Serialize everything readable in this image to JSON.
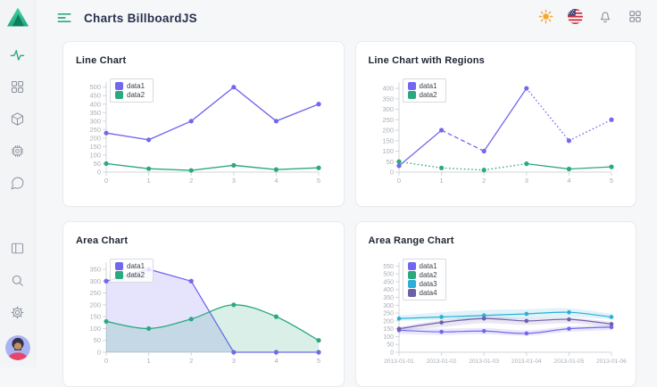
{
  "header": {
    "title": "Charts BillboardJS",
    "actions": [
      {
        "name": "theme-light",
        "icon": "sun-icon"
      },
      {
        "name": "language",
        "icon": "us-flag-icon"
      },
      {
        "name": "notifications",
        "icon": "bell-icon"
      },
      {
        "name": "apps",
        "icon": "apps-grid-icon"
      }
    ]
  },
  "sidebar": {
    "logo_icon": "triangle-logo",
    "top_items": [
      {
        "icon": "activity-icon",
        "active": true
      },
      {
        "icon": "dashboard-grid-icon",
        "active": false
      },
      {
        "icon": "cube-icon",
        "active": false
      },
      {
        "icon": "chip-icon",
        "active": false
      },
      {
        "icon": "chat-bubble-icon",
        "active": false
      }
    ],
    "bottom_items": [
      {
        "icon": "layout-icon"
      },
      {
        "icon": "search-icon"
      },
      {
        "icon": "gear-icon"
      }
    ],
    "avatar": "user-avatar"
  },
  "colors": {
    "primary_purple": "#7267EF",
    "success_green": "#2CA87F",
    "info_blue": "#2BAED8",
    "violet": "#6F5FA7",
    "sun_orange": "#F8A62A",
    "icon_gray": "#8B919C",
    "axis_line": "#d2d5da",
    "tick_text": "#a9adb5",
    "title_navy": "#28324E"
  },
  "chart_data": [
    {
      "type": "line",
      "title": "Line Chart",
      "xlabels": [
        "0",
        "1",
        "2",
        "3",
        "4",
        "5"
      ],
      "ylim": [
        0,
        530
      ],
      "yticks": [
        0,
        50,
        100,
        150,
        200,
        250,
        300,
        350,
        400,
        450,
        500
      ],
      "grid": false,
      "legend_position": "inset-top-left",
      "legend": [
        {
          "label": "data1",
          "color": "#7267EF"
        },
        {
          "label": "data2",
          "color": "#2CA87F"
        }
      ],
      "series": [
        {
          "name": "data1",
          "type": "line",
          "color": "#7267EF",
          "values": [
            230,
            190,
            300,
            500,
            300,
            400
          ]
        },
        {
          "name": "data2",
          "type": "line",
          "color": "#2CA87F",
          "values": [
            50,
            20,
            10,
            40,
            15,
            25
          ]
        }
      ]
    },
    {
      "type": "line",
      "title": "Line Chart with Regions",
      "xlabels": [
        "0",
        "1",
        "2",
        "3",
        "4",
        "5"
      ],
      "ylim": [
        0,
        430
      ],
      "yticks": [
        0,
        50,
        100,
        150,
        200,
        250,
        300,
        350,
        400
      ],
      "grid": false,
      "legend_position": "inset-top-left",
      "legend": [
        {
          "label": "data1",
          "color": "#7267EF"
        },
        {
          "label": "data2",
          "color": "#2CA87F"
        }
      ],
      "series": [
        {
          "name": "data1",
          "type": "line",
          "color": "#7267EF",
          "values": [
            30,
            200,
            100,
            400,
            150,
            250
          ],
          "segments": [
            "solid",
            "dashed",
            "solid",
            "dotted",
            "dotted"
          ]
        },
        {
          "name": "data2",
          "type": "line",
          "color": "#2CA87F",
          "values": [
            50,
            20,
            10,
            40,
            15,
            25
          ],
          "segments": [
            "dotted",
            "dotted",
            "dotted",
            "solid",
            "solid"
          ]
        }
      ]
    },
    {
      "type": "area",
      "title": "Area Chart",
      "xlabels": [
        "0",
        "1",
        "2",
        "3",
        "4",
        "5"
      ],
      "ylim": [
        0,
        380
      ],
      "yticks": [
        0,
        50,
        100,
        150,
        200,
        250,
        300,
        350
      ],
      "grid": false,
      "legend_position": "inset-top-left",
      "legend": [
        {
          "label": "data1",
          "color": "#7267EF"
        },
        {
          "label": "data2",
          "color": "#2CA87F"
        }
      ],
      "series": [
        {
          "name": "data1",
          "type": "area",
          "color": "#7267EF",
          "values": [
            300,
            350,
            300,
            0,
            0,
            0
          ]
        },
        {
          "name": "data2",
          "type": "area-spline",
          "color": "#2CA87F",
          "values": [
            130,
            100,
            140,
            200,
            150,
            50
          ]
        }
      ]
    },
    {
      "type": "area",
      "title": "Area Range Chart",
      "xlabels": [
        "2013-01-01",
        "2013-01-02",
        "2013-01-03",
        "2013-01-04",
        "2013-01-05",
        "2013-01-06"
      ],
      "xtick_size": 6.6,
      "ytick_size": 7,
      "ylim": [
        0,
        575
      ],
      "yticks": [
        0,
        50,
        100,
        150,
        200,
        250,
        300,
        350,
        400,
        450,
        500,
        550
      ],
      "grid": false,
      "legend_position": "inset-top-left",
      "legend": [
        {
          "label": "data1",
          "color": "#7267EF"
        },
        {
          "label": "data2",
          "color": "#2CA87F"
        },
        {
          "label": "data3",
          "color": "#2BAED8"
        },
        {
          "label": "data4",
          "color": "#6F5FA7"
        }
      ],
      "series": [
        {
          "name": "data1",
          "type": "range",
          "color": "#7267EF",
          "mid": [
            140,
            130,
            135,
            120,
            150,
            160
          ],
          "low": [
            115,
            110,
            115,
            105,
            130,
            140
          ],
          "high": [
            155,
            150,
            155,
            140,
            165,
            175
          ]
        },
        {
          "name": "data2",
          "type": "hidden",
          "color": "#2CA87F"
        },
        {
          "name": "data3",
          "type": "range",
          "color": "#2BAED8",
          "mid": [
            215,
            225,
            235,
            245,
            255,
            225
          ],
          "low": [
            200,
            205,
            210,
            215,
            225,
            210
          ],
          "high": [
            235,
            255,
            270,
            275,
            280,
            245
          ]
        },
        {
          "name": "data4",
          "type": "range",
          "color": "#6F5FA7",
          "mid": [
            150,
            190,
            215,
            200,
            210,
            180
          ],
          "low": [
            135,
            160,
            185,
            175,
            185,
            160
          ],
          "high": [
            162,
            205,
            228,
            218,
            222,
            195
          ]
        }
      ]
    }
  ]
}
